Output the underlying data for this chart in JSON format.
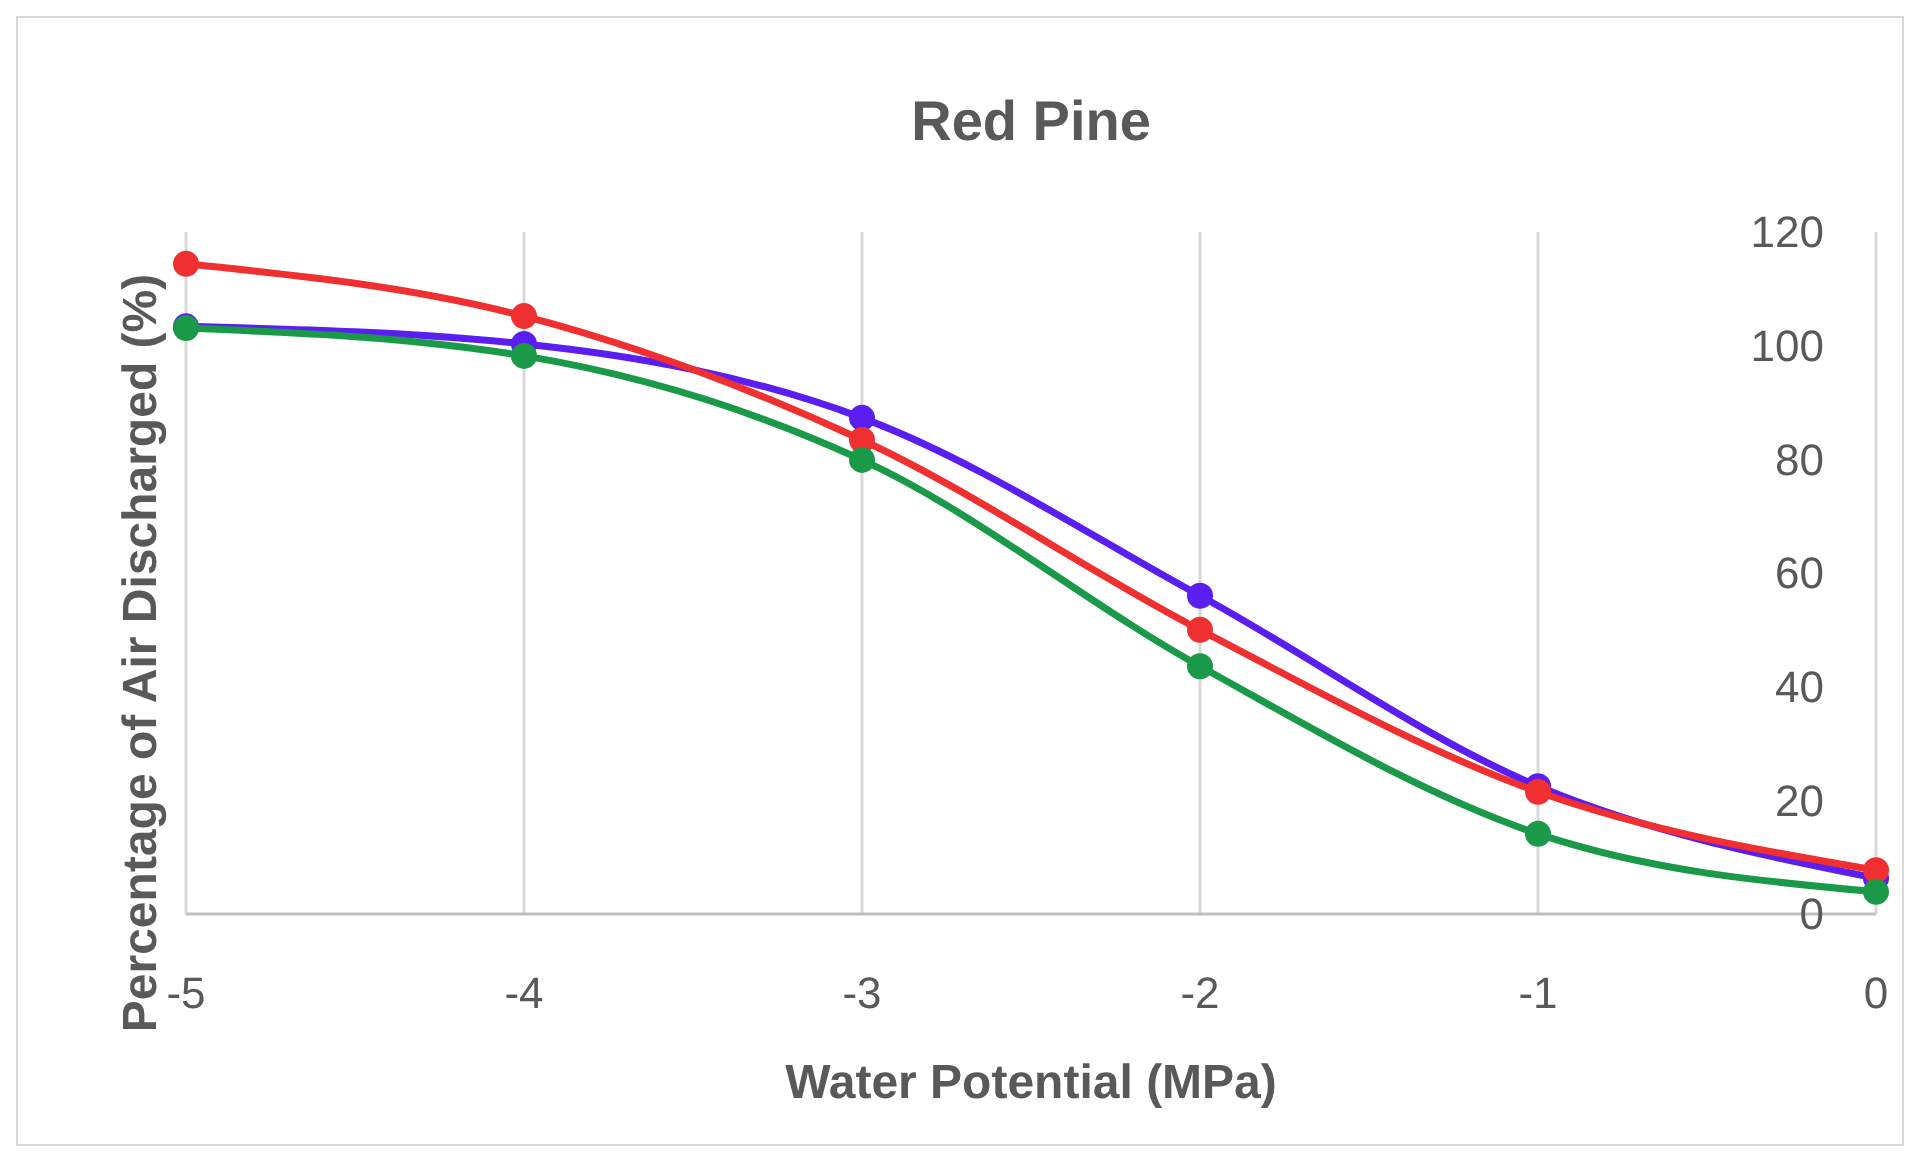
{
  "chart_data": {
    "type": "line",
    "title": "Red Pine",
    "xlabel": "Water Potential (MPa)",
    "ylabel": "Percentage of Air Discharged (%)",
    "x": [
      -5,
      -4,
      -3,
      -2,
      -1,
      0
    ],
    "series": [
      {
        "color": "#5b1ef0",
        "values": [
          103.4,
          100.3,
          87.3,
          56,
          22.5,
          6.3
        ]
      },
      {
        "color": "#f03030",
        "values": [
          114.4,
          105.2,
          83.4,
          50,
          21.5,
          7.7
        ]
      },
      {
        "color": "#1a9a48",
        "values": [
          103.1,
          98.2,
          79.9,
          43.6,
          14.1,
          3.9
        ]
      }
    ],
    "xlim": [
      -5,
      0
    ],
    "xticks": [
      -5,
      -4,
      -3,
      -2,
      -1,
      0
    ],
    "ylim": [
      0,
      120
    ],
    "yticks": [
      0,
      20,
      40,
      60,
      80,
      100,
      120
    ],
    "grid": "x",
    "marker": "circle",
    "line_style": "solid"
  }
}
